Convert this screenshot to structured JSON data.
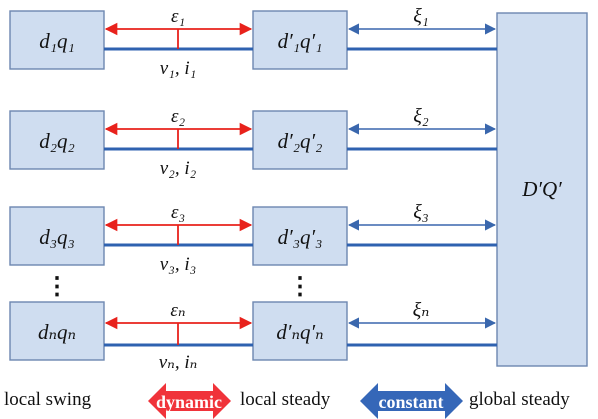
{
  "rows": [
    {
      "box1": "d₁q₁",
      "box2": "d′₁q′₁",
      "epsilon": "ε₁",
      "xi": "ξ₁",
      "vi": "v₁, i₁"
    },
    {
      "box1": "d₂q₂",
      "box2": "d′₂q′₂",
      "epsilon": "ε₂",
      "xi": "ξ₂",
      "vi": "v₂, i₂"
    },
    {
      "box1": "d₃q₃",
      "box2": "d′₃q′₃",
      "epsilon": "ε₃",
      "xi": "ξ₃",
      "vi": "v₃, i₃"
    },
    {
      "box1": "dₙqₙ",
      "box2": "d′ₙq′ₙ",
      "epsilon": "εₙ",
      "xi": "ξₙ",
      "vi": "vₙ, iₙ"
    }
  ],
  "global_box": "D′Q′",
  "ellipsis": "⋮",
  "legend": {
    "local_swing": "local swing",
    "dynamic": "dynamic",
    "local_steady": "local steady",
    "constant": "constant",
    "global_steady": "global steady",
    "dynamic_color": "#f0333a",
    "constant_color": "#3567b8"
  }
}
